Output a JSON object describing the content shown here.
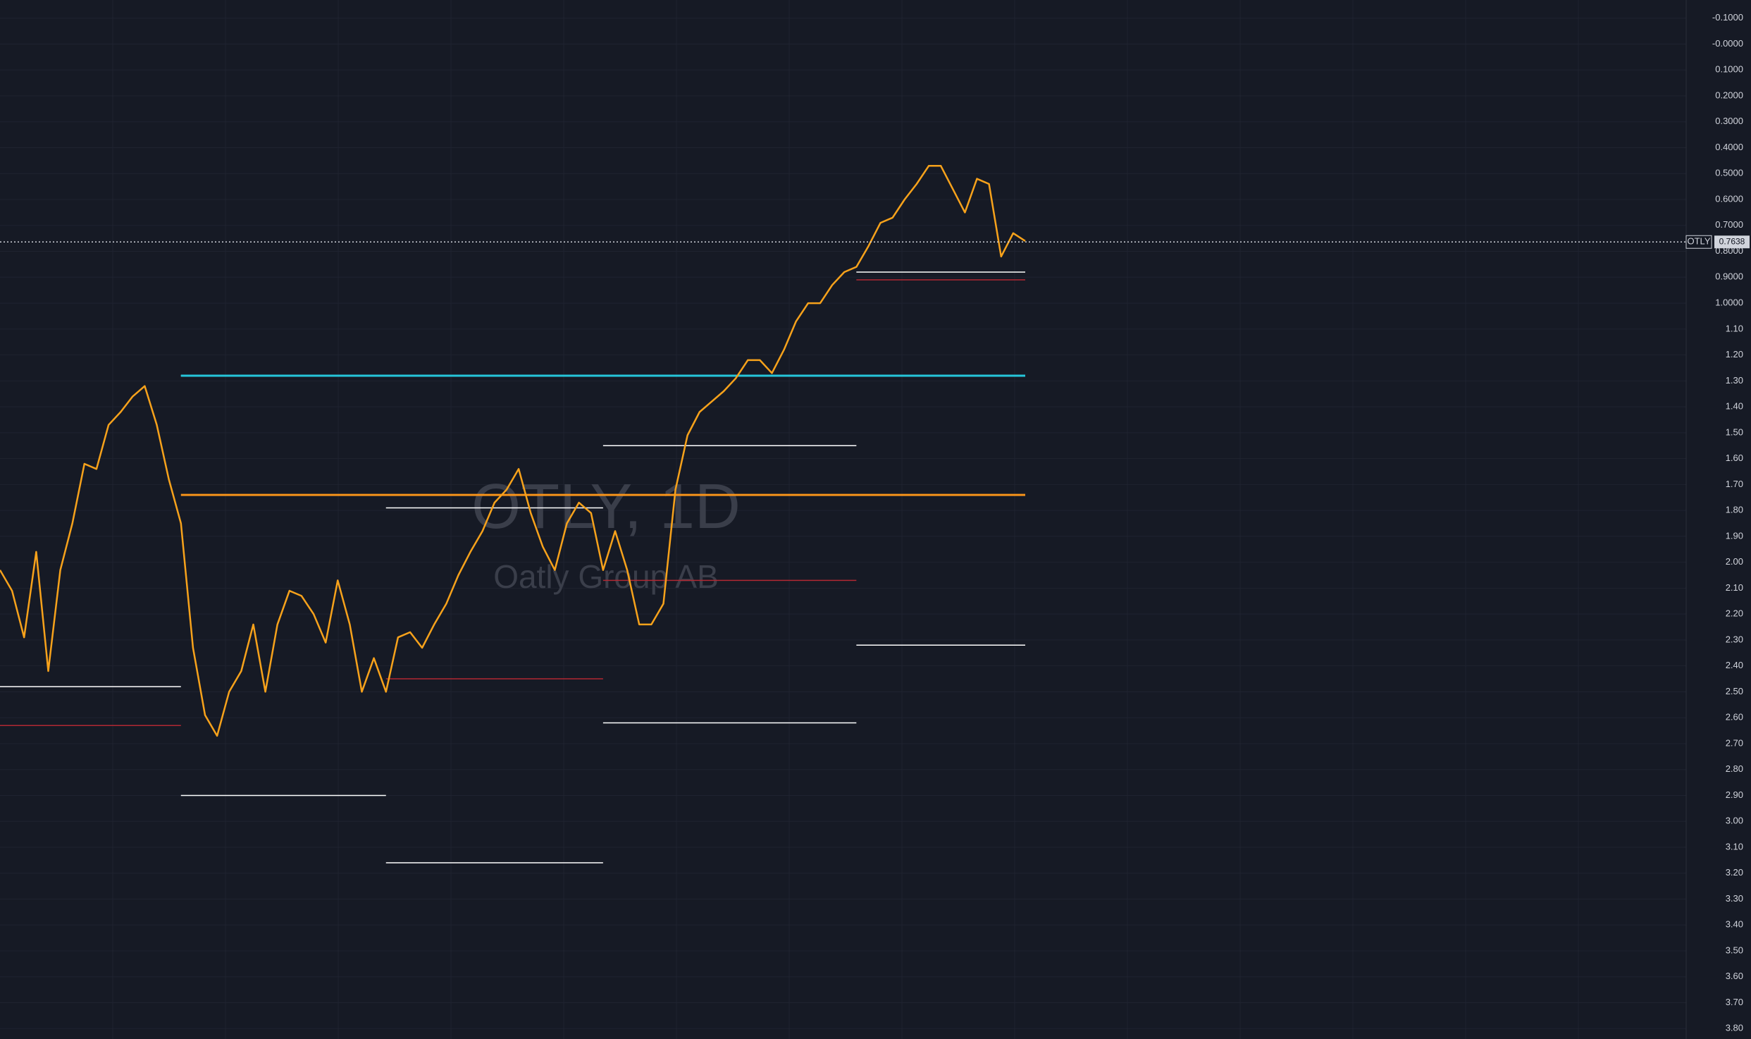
{
  "chart_data": {
    "type": "line",
    "title": "OTLY, 1D",
    "subtitle": "Oatly Group AB",
    "symbol": "OTLY",
    "last_price": 0.7638,
    "color": "#f7a21b",
    "values": [
      2.03,
      2.11,
      2.29,
      1.96,
      2.42,
      2.03,
      1.85,
      1.62,
      1.64,
      1.47,
      1.42,
      1.36,
      1.32,
      1.47,
      1.68,
      1.85,
      2.33,
      2.59,
      2.67,
      2.5,
      2.42,
      2.24,
      2.5,
      2.24,
      2.11,
      2.13,
      2.2,
      2.31,
      2.07,
      2.24,
      2.5,
      2.37,
      2.5,
      2.29,
      2.27,
      2.33,
      2.24,
      2.16,
      2.05,
      1.96,
      1.88,
      1.77,
      1.72,
      1.64,
      1.81,
      1.94,
      2.03,
      1.85,
      1.77,
      1.81,
      2.03,
      1.88,
      2.03,
      2.24,
      2.24,
      2.16,
      1.72,
      1.51,
      1.42,
      1.38,
      1.34,
      1.29,
      1.22,
      1.22,
      1.27,
      1.18,
      1.07,
      1.0,
      1.0,
      0.93,
      0.88,
      0.86,
      0.78,
      0.69,
      0.67,
      0.6,
      0.54,
      0.47,
      0.47,
      0.56,
      0.65,
      0.52,
      0.54,
      0.82,
      0.73,
      0.76
    ],
    "levels": [
      {
        "value": 2.48,
        "color": "#ffffff",
        "start": 0,
        "end": 15
      },
      {
        "value": 1.28,
        "color": "#ffffff",
        "start": 15,
        "end": 32
      },
      {
        "value": 1.79,
        "color": "#ffffff",
        "start": 32,
        "end": 50
      },
      {
        "value": 1.55,
        "color": "#ffffff",
        "start": 50,
        "end": 71
      },
      {
        "value": 0.88,
        "color": "#ffffff",
        "start": 71,
        "end": 85
      },
      {
        "value": 2.9,
        "color": "#ffffff",
        "start": 15,
        "end": 32
      },
      {
        "value": 3.16,
        "color": "#ffffff",
        "start": 32,
        "end": 50
      },
      {
        "value": 2.62,
        "color": "#ffffff",
        "start": 50,
        "end": 71
      },
      {
        "value": 2.32,
        "color": "#ffffff",
        "start": 71,
        "end": 85
      },
      {
        "value": 1.28,
        "color": "#26c6da",
        "start": 15,
        "end": 85
      },
      {
        "value": 1.74,
        "color": "#f7931a",
        "start": 15,
        "end": 85
      },
      {
        "value": 2.63,
        "color": "#b22833",
        "start": 0,
        "end": 15
      },
      {
        "value": 2.45,
        "color": "#b22833",
        "start": 32,
        "end": 50
      },
      {
        "value": 2.07,
        "color": "#b22833",
        "start": 50,
        "end": 71
      },
      {
        "value": 0.91,
        "color": "#b22833",
        "start": 71,
        "end": 85
      }
    ],
    "ylim": [
      3.84,
      -0.17
    ],
    "yticks": [
      {
        "value": -0.1,
        "label": "-0.1000"
      },
      {
        "value": 0,
        "label": "-0.0000"
      },
      {
        "value": 0.1,
        "label": "0.1000"
      },
      {
        "value": 0.2,
        "label": "0.2000"
      },
      {
        "value": 0.3,
        "label": "0.3000"
      },
      {
        "value": 0.4,
        "label": "0.4000"
      },
      {
        "value": 0.5,
        "label": "0.5000"
      },
      {
        "value": 0.6,
        "label": "0.6000"
      },
      {
        "value": 0.7,
        "label": "0.7000"
      },
      {
        "value": 0.8,
        "label": "0.8000"
      },
      {
        "value": 0.9,
        "label": "0.9000"
      },
      {
        "value": 1.0,
        "label": "1.0000"
      },
      {
        "value": 1.1,
        "label": "1.10"
      },
      {
        "value": 1.2,
        "label": "1.20"
      },
      {
        "value": 1.3,
        "label": "1.30"
      },
      {
        "value": 1.4,
        "label": "1.40"
      },
      {
        "value": 1.5,
        "label": "1.50"
      },
      {
        "value": 1.6,
        "label": "1.60"
      },
      {
        "value": 1.7,
        "label": "1.70"
      },
      {
        "value": 1.8,
        "label": "1.80"
      },
      {
        "value": 1.9,
        "label": "1.90"
      },
      {
        "value": 2.0,
        "label": "2.00"
      },
      {
        "value": 2.1,
        "label": "2.10"
      },
      {
        "value": 2.2,
        "label": "2.20"
      },
      {
        "value": 2.3,
        "label": "2.30"
      },
      {
        "value": 2.4,
        "label": "2.40"
      },
      {
        "value": 2.5,
        "label": "2.50"
      },
      {
        "value": 2.6,
        "label": "2.60"
      },
      {
        "value": 2.7,
        "label": "2.70"
      },
      {
        "value": 2.8,
        "label": "2.80"
      },
      {
        "value": 2.9,
        "label": "2.90"
      },
      {
        "value": 3.0,
        "label": "3.00"
      },
      {
        "value": 3.1,
        "label": "3.10"
      },
      {
        "value": 3.2,
        "label": "3.20"
      },
      {
        "value": 3.3,
        "label": "3.30"
      },
      {
        "value": 3.4,
        "label": "3.40"
      },
      {
        "value": 3.5,
        "label": "3.50"
      },
      {
        "value": 3.6,
        "label": "3.60"
      },
      {
        "value": 3.7,
        "label": "3.70"
      },
      {
        "value": 3.8,
        "label": "3.80"
      }
    ],
    "grid": true
  }
}
